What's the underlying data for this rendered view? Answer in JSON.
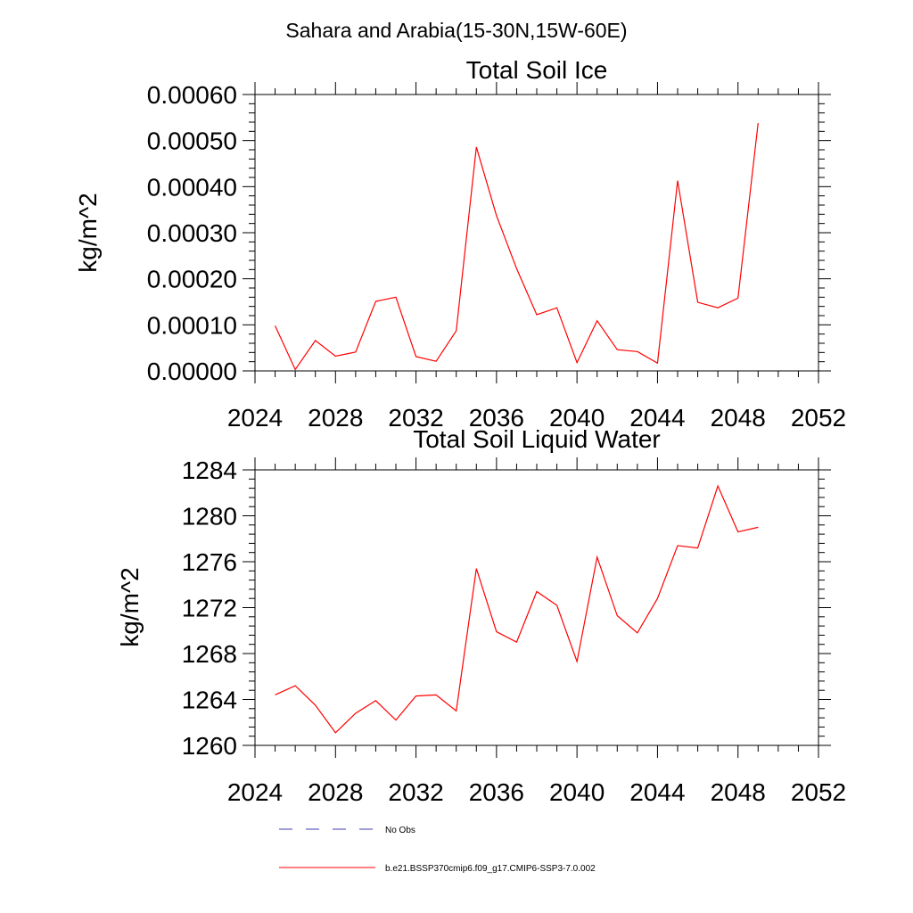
{
  "figure": {
    "title": "Sahara and Arabia(15-30N,15W-60E)"
  },
  "colors": {
    "series_line": "#ff0000",
    "obs_line": "#3b3bb0",
    "axis": "#000000"
  },
  "legend": {
    "placement": "bottom-center",
    "items": [
      {
        "label": "No Obs",
        "style": "dashed",
        "color": "#3b3bb0"
      },
      {
        "label": "b.e21.BSSP370cmip6.f09_g17.CMIP6-SSP3-7.0.002",
        "style": "solid",
        "color": "#ff0000"
      }
    ]
  },
  "chart_data": [
    {
      "type": "line",
      "title": "Total Soil Ice",
      "xlabel": "",
      "ylabel": "kg/m^2",
      "xlim": [
        2024,
        2052
      ],
      "ylim": [
        0,
        0.0006
      ],
      "xticks": [
        "2024",
        "2028",
        "2032",
        "2036",
        "2040",
        "2044",
        "2048",
        "2052"
      ],
      "yticks": [
        "0.00000",
        "0.00010",
        "0.00020",
        "0.00030",
        "0.00040",
        "0.00050",
        "0.00060"
      ],
      "grid": false,
      "x": [
        2025,
        2026,
        2027,
        2028,
        2029,
        2030,
        2031,
        2032,
        2033,
        2034,
        2035,
        2036,
        2037,
        2038,
        2039,
        2040,
        2041,
        2042,
        2043,
        2044,
        2045,
        2046,
        2047,
        2048,
        2049
      ],
      "series": [
        {
          "name": "b.e21.BSSP370cmip6.f09_g17.CMIP6-SSP3-7.0.002",
          "color": "#ff0000",
          "values": [
            9.8e-05,
            3e-06,
            6.6e-05,
            3.2e-05,
            4.1e-05,
            0.000151,
            0.00016,
            3.1e-05,
            2.1e-05,
            8.7e-05,
            0.000486,
            0.000337,
            0.000222,
            0.000122,
            0.000137,
            1.8e-05,
            0.000109,
            4.6e-05,
            4.2e-05,
            1.7e-05,
            0.000413,
            0.000149,
            0.000137,
            0.000158,
            0.000538
          ]
        }
      ]
    },
    {
      "type": "line",
      "title": "Total Soil Liquid Water",
      "xlabel": "",
      "ylabel": "kg/m^2",
      "xlim": [
        2024,
        2052
      ],
      "ylim": [
        1260,
        1284
      ],
      "xticks": [
        "2024",
        "2028",
        "2032",
        "2036",
        "2040",
        "2044",
        "2048",
        "2052"
      ],
      "yticks": [
        "1260",
        "1264",
        "1268",
        "1272",
        "1276",
        "1280",
        "1284"
      ],
      "grid": false,
      "x": [
        2025,
        2026,
        2027,
        2028,
        2029,
        2030,
        2031,
        2032,
        2033,
        2034,
        2035,
        2036,
        2037,
        2038,
        2039,
        2040,
        2041,
        2042,
        2043,
        2044,
        2045,
        2046,
        2047,
        2048,
        2049
      ],
      "series": [
        {
          "name": "b.e21.BSSP370cmip6.f09_g17.CMIP6-SSP3-7.0.002",
          "color": "#ff0000",
          "values": [
            1264.4,
            1265.2,
            1263.5,
            1261.1,
            1262.8,
            1263.9,
            1262.2,
            1264.3,
            1264.4,
            1263.0,
            1275.4,
            1269.9,
            1269.0,
            1273.4,
            1272.2,
            1267.3,
            1276.4,
            1271.3,
            1269.8,
            1272.8,
            1277.4,
            1277.2,
            1282.6,
            1278.6,
            1279.0
          ]
        }
      ]
    }
  ]
}
